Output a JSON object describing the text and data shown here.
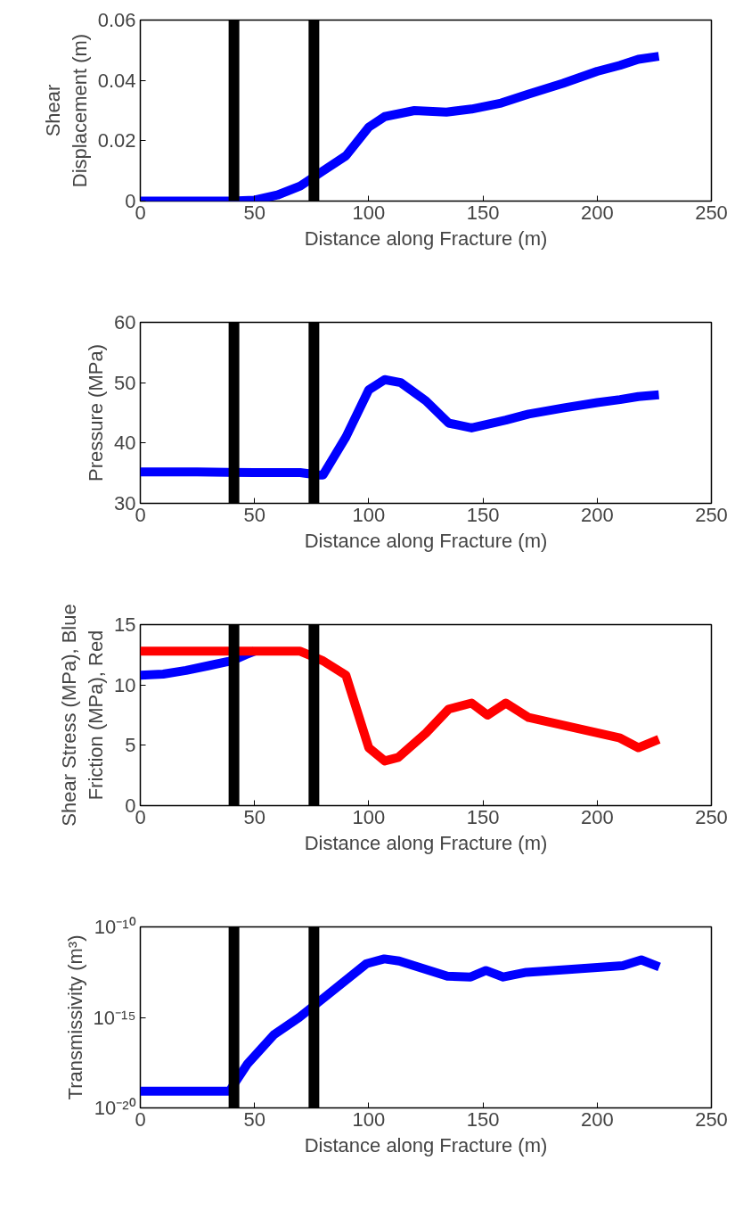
{
  "chart_data": [
    {
      "type": "line",
      "xlabel": "Distance along Fracture (m)",
      "ylabel": "Shear\nDisplacement (m)",
      "grid": false,
      "xlim": [
        0,
        250
      ],
      "xticks": [
        0,
        50,
        100,
        150,
        200,
        250
      ],
      "ylim": [
        0,
        0.06
      ],
      "yticks": [
        0,
        0.02,
        0.04,
        0.06
      ],
      "x": [
        0,
        40,
        50,
        60,
        70,
        80,
        90,
        100,
        107,
        120,
        134,
        145,
        158,
        170,
        185,
        200,
        210,
        218,
        227
      ],
      "series": [
        {
          "color": "#0000ff",
          "values": [
            0,
            0,
            0.0003,
            0.002,
            0.005,
            0.01,
            0.015,
            0.0245,
            0.028,
            0.03,
            0.0295,
            0.0305,
            0.0325,
            0.0355,
            0.039,
            0.043,
            0.045,
            0.047,
            0.048
          ]
        }
      ],
      "ref_lines": [
        {
          "axis": "x",
          "value": 41,
          "color": "#000000"
        },
        {
          "axis": "x",
          "value": 76,
          "color": "#000000"
        }
      ]
    },
    {
      "type": "line",
      "xlabel": "Distance along Fracture (m)",
      "ylabel": "Pressure (MPa)",
      "grid": false,
      "xlim": [
        0,
        250
      ],
      "xticks": [
        0,
        50,
        100,
        150,
        200,
        250
      ],
      "ylim": [
        30,
        60
      ],
      "yticks": [
        30,
        40,
        50,
        60
      ],
      "x": [
        0,
        25,
        50,
        70,
        78,
        80,
        90,
        100,
        107,
        114,
        125,
        135,
        145,
        160,
        170,
        185,
        200,
        210,
        218,
        227
      ],
      "series": [
        {
          "color": "#0000ff",
          "values": [
            35.2,
            35.2,
            35.1,
            35.1,
            34.7,
            34.7,
            41,
            48.8,
            50.5,
            50,
            47,
            43.3,
            42.5,
            43.8,
            44.8,
            45.8,
            46.7,
            47.2,
            47.7,
            48
          ]
        }
      ],
      "ref_lines": [
        {
          "axis": "x",
          "value": 41,
          "color": "#000000"
        },
        {
          "axis": "x",
          "value": 76,
          "color": "#000000"
        }
      ]
    },
    {
      "type": "line",
      "xlabel": "Distance along Fracture (m)",
      "ylabel": "Shear Stress (MPa), Blue\nFriction (MPa), Red",
      "grid": false,
      "xlim": [
        0,
        250
      ],
      "xticks": [
        0,
        50,
        100,
        150,
        200,
        250
      ],
      "ylim": [
        0,
        15
      ],
      "yticks": [
        0,
        5,
        10,
        15
      ],
      "series": [
        {
          "color": "#0000ff",
          "x": [
            0,
            10,
            20,
            30,
            40,
            46,
            50
          ],
          "values": [
            10.8,
            10.9,
            11.2,
            11.6,
            12.0,
            12.5,
            12.8
          ]
        },
        {
          "color": "#ff0000",
          "x": [
            0,
            70,
            80,
            90,
            100,
            107,
            113,
            125,
            135,
            145,
            152,
            160,
            170,
            210,
            218,
            227
          ],
          "values": [
            12.8,
            12.8,
            12.0,
            10.8,
            4.8,
            3.7,
            4.0,
            6.0,
            8.0,
            8.5,
            7.5,
            8.5,
            7.3,
            5.6,
            4.8,
            5.5
          ]
        }
      ],
      "ref_lines": [
        {
          "axis": "x",
          "value": 41,
          "color": "#000000"
        },
        {
          "axis": "x",
          "value": 76,
          "color": "#000000"
        }
      ]
    },
    {
      "type": "line",
      "xlabel": "Distance along Fracture (m)",
      "ylabel": "Transmissivity (m³)",
      "grid": false,
      "log": "y",
      "xlim": [
        0,
        250
      ],
      "xticks": [
        0,
        50,
        100,
        150,
        200,
        250
      ],
      "ylim": [
        1e-20,
        1e-10
      ],
      "yticks": [
        {
          "value": 1e-20,
          "label": "10⁻²⁰"
        },
        {
          "value": 1e-15,
          "label": "10⁻¹⁵"
        },
        {
          "value": 1e-10,
          "label": "10⁻¹⁰"
        }
      ],
      "x": [
        0,
        39,
        47,
        58.5,
        69.5,
        79.6,
        99,
        106.8,
        113.3,
        134.4,
        144.6,
        151.3,
        158.9,
        169,
        187.5,
        211.2,
        219.3,
        227.2
      ],
      "series": [
        {
          "color": "#0000ff",
          "values": [
            8.3e-20,
            8.3e-20,
            2.8e-18,
            1.1e-16,
            9.8e-16,
            1e-14,
            9.3e-13,
            1.7e-12,
            1.3e-12,
            1.9e-13,
            1.7e-13,
            3.9e-13,
            1.7e-13,
            3.1e-13,
            4.4e-13,
            7.2e-13,
            1.5e-12,
            6.2e-13
          ]
        }
      ],
      "ref_lines": [
        {
          "axis": "x",
          "value": 41,
          "color": "#000000"
        },
        {
          "axis": "x",
          "value": 76,
          "color": "#000000"
        }
      ]
    }
  ]
}
